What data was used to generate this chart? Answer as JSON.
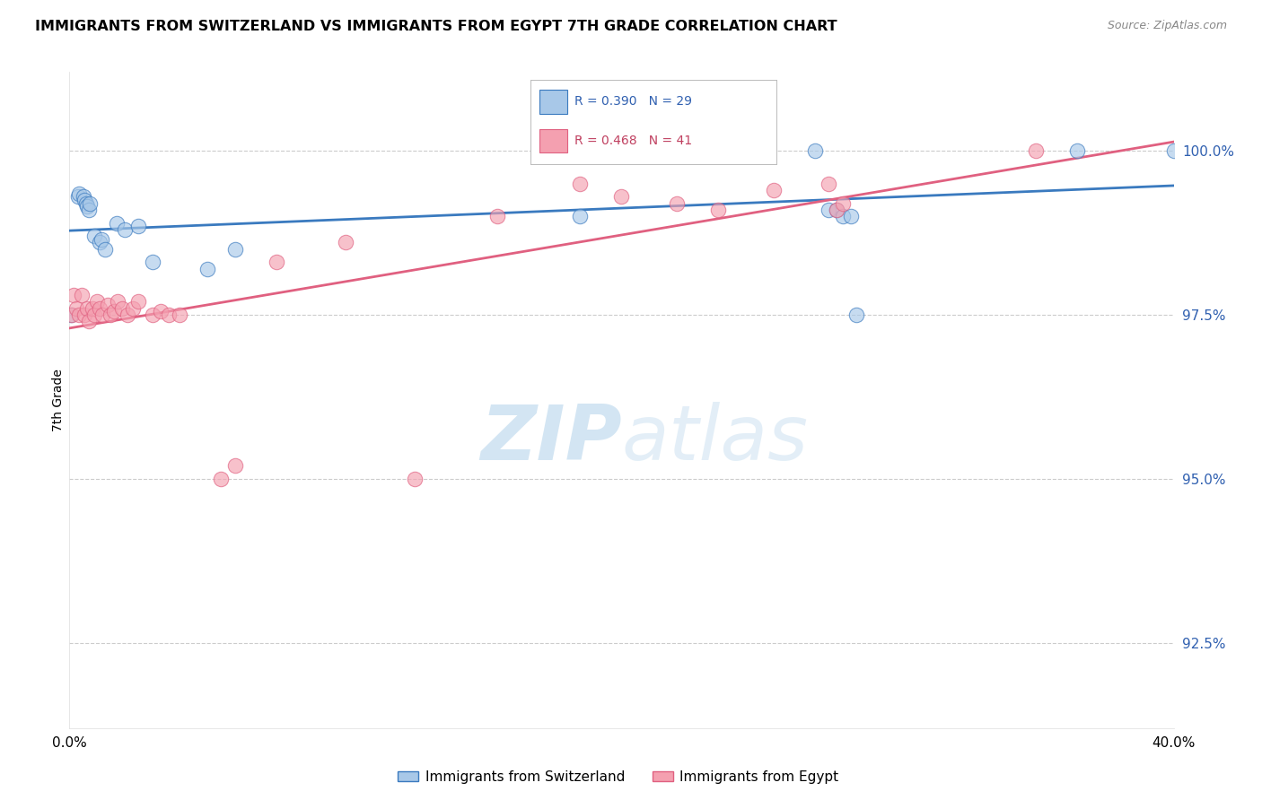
{
  "title": "IMMIGRANTS FROM SWITZERLAND VS IMMIGRANTS FROM EGYPT 7TH GRADE CORRELATION CHART",
  "source": "Source: ZipAtlas.com",
  "ylabel": "7th Grade",
  "y_ticks": [
    92.5,
    95.0,
    97.5,
    100.0
  ],
  "y_tick_labels": [
    "92.5%",
    "95.0%",
    "97.5%",
    "100.0%"
  ],
  "xlim": [
    0.0,
    40.0
  ],
  "ylim": [
    91.2,
    101.2
  ],
  "r_switzerland": 0.39,
  "n_switzerland": 29,
  "r_egypt": 0.468,
  "n_egypt": 41,
  "legend_switzerland": "Immigrants from Switzerland",
  "legend_egypt": "Immigrants from Egypt",
  "color_switzerland": "#a8c8e8",
  "color_egypt": "#f4a0b0",
  "line_color_switzerland": "#3a7abf",
  "line_color_egypt": "#e06080",
  "watermark": "ZIPatlas",
  "switzerland_x": [
    0.05,
    0.3,
    0.35,
    0.5,
    0.55,
    0.6,
    0.65,
    0.7,
    0.75,
    0.9,
    1.1,
    1.15,
    1.3,
    1.7,
    2.0,
    2.5,
    3.0,
    5.0,
    6.0,
    18.5,
    22.5,
    27.0,
    27.5,
    27.8,
    28.0,
    28.3,
    28.5,
    36.5,
    40.0
  ],
  "switzerland_y": [
    97.5,
    99.3,
    99.35,
    99.3,
    99.25,
    99.2,
    99.15,
    99.1,
    99.2,
    98.7,
    98.6,
    98.65,
    98.5,
    98.9,
    98.8,
    98.85,
    98.3,
    98.2,
    98.5,
    99.0,
    100.0,
    100.0,
    99.1,
    99.1,
    99.0,
    99.0,
    97.5,
    100.0,
    100.0
  ],
  "egypt_x": [
    0.08,
    0.15,
    0.25,
    0.35,
    0.45,
    0.55,
    0.65,
    0.72,
    0.82,
    0.9,
    1.0,
    1.1,
    1.2,
    1.4,
    1.5,
    1.6,
    1.75,
    1.9,
    2.1,
    2.3,
    2.5,
    3.0,
    3.3,
    3.6,
    4.0,
    5.5,
    6.0,
    7.5,
    10.0,
    12.5,
    15.5,
    18.5,
    20.0,
    22.0,
    23.5,
    25.5,
    27.5,
    27.8,
    28.0,
    35.0,
    40.5
  ],
  "egypt_y": [
    97.5,
    97.8,
    97.6,
    97.5,
    97.8,
    97.5,
    97.6,
    97.4,
    97.6,
    97.5,
    97.7,
    97.6,
    97.5,
    97.65,
    97.5,
    97.55,
    97.7,
    97.6,
    97.5,
    97.6,
    97.7,
    97.5,
    97.55,
    97.5,
    97.5,
    95.0,
    95.2,
    98.3,
    98.6,
    95.0,
    99.0,
    99.5,
    99.3,
    99.2,
    99.1,
    99.4,
    99.5,
    99.1,
    99.2,
    100.0,
    100.0
  ]
}
